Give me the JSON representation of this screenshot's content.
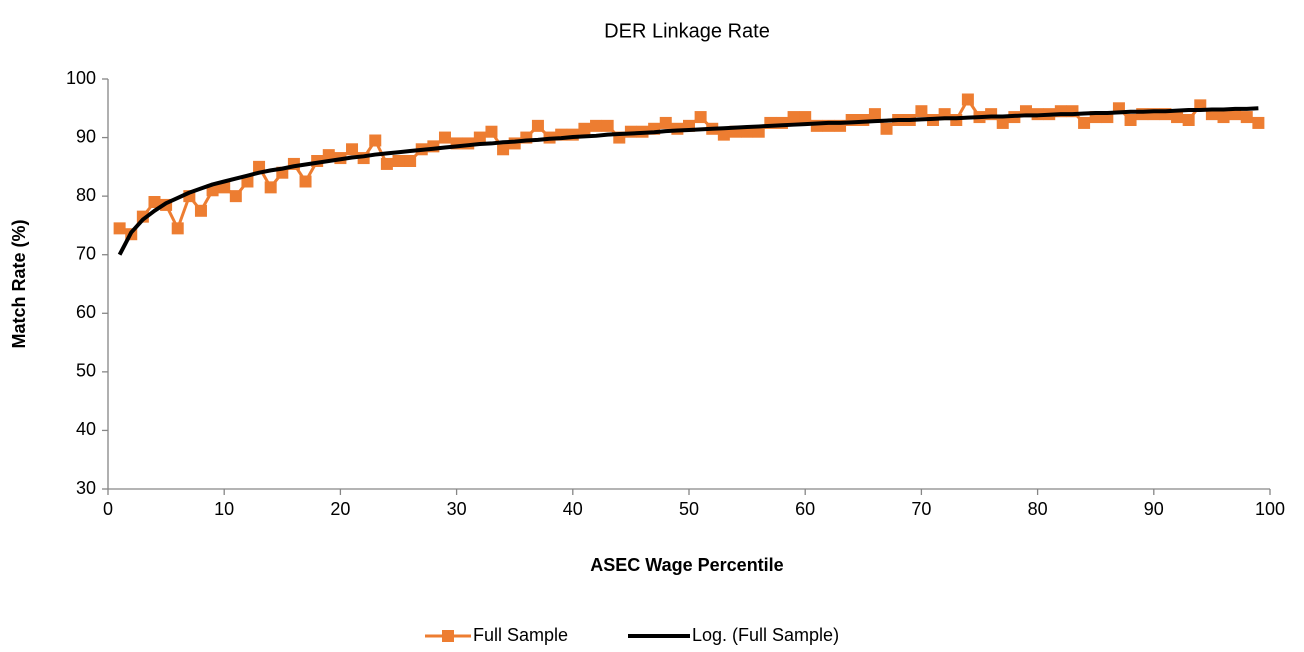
{
  "chart_data": {
    "type": "line",
    "title": "DER Linkage Rate",
    "x_label": "ASEC Wage Percentile",
    "y_label": "Match Rate (%)",
    "x": [
      1,
      2,
      3,
      4,
      5,
      6,
      7,
      8,
      9,
      10,
      11,
      12,
      13,
      14,
      15,
      16,
      17,
      18,
      19,
      20,
      21,
      22,
      23,
      24,
      25,
      26,
      27,
      28,
      29,
      30,
      31,
      32,
      33,
      34,
      35,
      36,
      37,
      38,
      39,
      40,
      41,
      42,
      43,
      44,
      45,
      46,
      47,
      48,
      49,
      50,
      51,
      52,
      53,
      54,
      55,
      56,
      57,
      58,
      59,
      60,
      61,
      62,
      63,
      64,
      65,
      66,
      67,
      68,
      69,
      70,
      71,
      72,
      73,
      74,
      75,
      76,
      77,
      78,
      79,
      80,
      81,
      82,
      83,
      84,
      85,
      86,
      87,
      88,
      89,
      90,
      91,
      92,
      93,
      94,
      95,
      96,
      97,
      98,
      99
    ],
    "series": [
      {
        "name": "Full Sample",
        "color": "#ed7d31",
        "marker": "square",
        "line_width": 3,
        "values": [
          74.5,
          73.5,
          76.5,
          79,
          78.5,
          74.5,
          80,
          77.5,
          81,
          81.5,
          80,
          82.5,
          85,
          81.5,
          84,
          85.5,
          82.5,
          86,
          87,
          86.5,
          88,
          86.5,
          89.5,
          85.5,
          86,
          86,
          88,
          88.5,
          90,
          89,
          89,
          90,
          91,
          88,
          89,
          90,
          92,
          90,
          90.5,
          90.5,
          91.5,
          92,
          92,
          90,
          91,
          91,
          91.5,
          92.5,
          91.5,
          92,
          93.5,
          91.5,
          90.5,
          91,
          91,
          91,
          92.5,
          92.5,
          93.5,
          93.5,
          92,
          92,
          92,
          93,
          93,
          94,
          91.5,
          93,
          93,
          94.5,
          93,
          94,
          93,
          96.5,
          93.5,
          94,
          92.5,
          93.5,
          94.5,
          94,
          94,
          94.5,
          94.5,
          92.5,
          93.5,
          93.5,
          95,
          93,
          94,
          94,
          94,
          93.5,
          93,
          95.5,
          94,
          93.5,
          94,
          93.5,
          92.5
        ]
      },
      {
        "name": "Log. (Full Sample)",
        "color": "#000000",
        "marker": "none",
        "line_width": 4,
        "values": [
          70.0,
          73.8,
          76.0,
          77.5,
          78.8,
          79.7,
          80.6,
          81.3,
          82.0,
          82.5,
          83.0,
          83.5,
          84.0,
          84.4,
          84.7,
          85.1,
          85.4,
          85.7,
          86.0,
          86.3,
          86.6,
          86.8,
          87.1,
          87.3,
          87.5,
          87.7,
          87.9,
          88.1,
          88.3,
          88.5,
          88.7,
          88.9,
          89.0,
          89.2,
          89.3,
          89.5,
          89.6,
          89.8,
          89.9,
          90.1,
          90.2,
          90.3,
          90.5,
          90.6,
          90.7,
          90.8,
          90.9,
          91.1,
          91.2,
          91.3,
          91.4,
          91.5,
          91.6,
          91.7,
          91.8,
          91.9,
          92.0,
          92.1,
          92.2,
          92.3,
          92.4,
          92.5,
          92.5,
          92.6,
          92.7,
          92.8,
          92.9,
          93.0,
          93.0,
          93.1,
          93.2,
          93.3,
          93.3,
          93.4,
          93.5,
          93.6,
          93.6,
          93.7,
          93.8,
          93.8,
          93.9,
          94.0,
          94.0,
          94.1,
          94.2,
          94.2,
          94.3,
          94.4,
          94.4,
          94.5,
          94.5,
          94.6,
          94.7,
          94.7,
          94.8,
          94.8,
          94.9,
          94.9,
          95.0
        ]
      }
    ],
    "xlim": [
      0,
      100
    ],
    "xticks": [
      0,
      10,
      20,
      30,
      40,
      50,
      60,
      70,
      80,
      90,
      100
    ],
    "ylim": [
      30,
      100
    ],
    "yticks": [
      30,
      40,
      50,
      60,
      70,
      80,
      90,
      100
    ],
    "grid": false,
    "legend": "bottom"
  }
}
